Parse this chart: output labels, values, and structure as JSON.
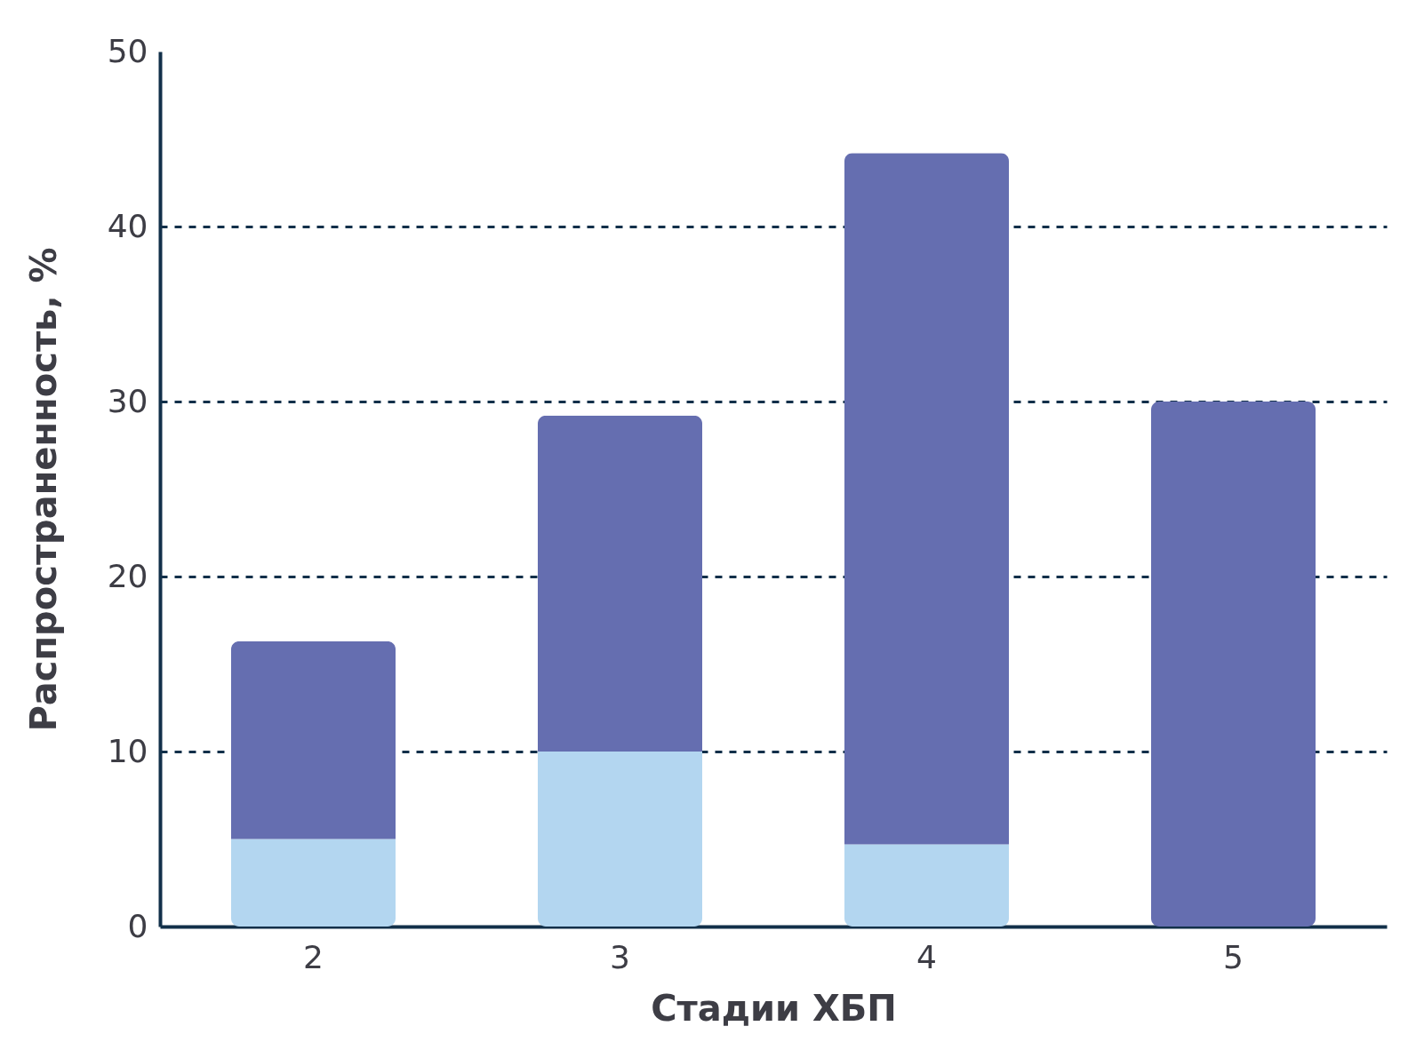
{
  "chart_data": {
    "type": "bar",
    "stacked": true,
    "xlabel": "Стадии ХБП",
    "ylabel": "Распространенность, %",
    "categories": [
      "2",
      "3",
      "4",
      "5"
    ],
    "series": [
      {
        "color": "#b3d6f0",
        "values": [
          5,
          10,
          4.7,
          0
        ]
      },
      {
        "color": "#656eb0",
        "values": [
          11.3,
          19.2,
          39.5,
          30
        ]
      }
    ],
    "ylim": [
      0,
      50
    ],
    "yticks": [
      0,
      10,
      20,
      30,
      40,
      50
    ],
    "grid": "y"
  }
}
